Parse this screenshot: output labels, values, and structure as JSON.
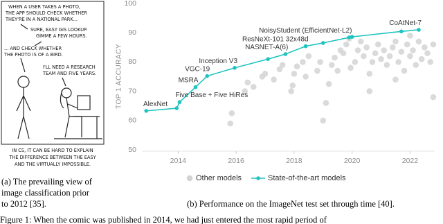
{
  "comic": {
    "lines": [
      "WHEN A USER TAKES A PHOTO,",
      "THE APP SHOULD CHECK WHETHER",
      "THEY'RE IN A NATIONAL PARK...",
      "SURE, EASY GIS LOOKUP.",
      "GIMME A FEW HOURS.",
      "... AND CHECK WHETHER",
      "THE PHOTO IS OF A BIRD.",
      "I'LL NEED A RESEARCH",
      "TEAM AND FIVE YEARS."
    ],
    "caption": [
      "IN CS, IT CAN BE HARD TO EXPLAIN",
      "THE DIFFERENCE BETWEEN THE EASY",
      "AND THE VIRTUALLY IMPOSSIBLE."
    ]
  },
  "caption_a": [
    "(a) The prevailing view of",
    "image classification prior",
    "to 2012 [35]."
  ],
  "caption_b": "(b) Performance on the ImageNet test set through time [40].",
  "figure_caption": "Figure 1: When the comic was published in 2014, we had just entered the most rapid period of",
  "chart_data": {
    "type": "line",
    "y_label": "TOP 1 ACCURACY",
    "xlim": [
      2012.75,
      2022.85
    ],
    "xticks": [
      2014,
      2016,
      2018,
      2020,
      2022
    ],
    "ylim": [
      50,
      100
    ],
    "yticks": [
      50,
      60,
      70,
      80,
      90,
      100
    ],
    "grid": false,
    "legend": "bottom",
    "series": [
      {
        "name": "Other models",
        "color": "#d3d3d3",
        "mode": "markers",
        "x": [
          2015.8,
          2015.85,
          2016.3,
          2016.4,
          2016.6,
          2016.9,
          2017.0,
          2017.3,
          2017.5,
          2017.6,
          2017.9,
          2017.95,
          2018.0,
          2018.1,
          2018.3,
          2018.4,
          2018.5,
          2018.8,
          2018.9,
          2019.0,
          2019.1,
          2019.2,
          2019.3,
          2019.4,
          2019.5,
          2019.6,
          2019.7,
          2019.8,
          2019.9,
          2019.95,
          2020.1,
          2020.2,
          2020.3,
          2020.4,
          2020.5,
          2020.6,
          2020.7,
          2020.8,
          2020.9,
          2021.0,
          2021.1,
          2021.2,
          2021.3,
          2021.4,
          2021.5,
          2021.6,
          2021.7,
          2021.8,
          2021.9,
          2022.0,
          2022.1,
          2022.2,
          2022.3,
          2022.4,
          2022.5,
          2022.6,
          2022.7,
          2022.8,
          2022.0,
          2021.5,
          2020.6,
          2022.8
        ],
        "values": [
          59,
          62.5,
          70,
          73,
          71.5,
          75,
          76,
          74,
          77.5,
          79,
          70,
          72,
          76,
          78.5,
          80,
          75,
          82,
          77,
          80,
          60,
          66,
          72.5,
          79,
          81.5,
          77,
          84,
          83,
          86,
          88,
          78,
          80,
          84,
          87,
          82,
          85,
          76,
          80,
          83,
          86,
          81,
          84,
          79,
          82,
          85,
          87,
          80,
          83.5,
          77,
          86,
          82,
          84,
          79,
          87,
          81,
          85,
          83,
          80,
          86,
          89,
          74,
          70,
          68
        ]
      },
      {
        "name": "State-of-the-art models",
        "color": "#1fc4c0",
        "mode": "lines+markers",
        "x": [
          2012.9,
          2013.95,
          2014.05,
          2014.6,
          2015.0,
          2015.95,
          2017.1,
          2017.7,
          2018.4,
          2019.0,
          2019.9,
          2020.0,
          2021.7,
          2022.3
        ],
        "values": [
          63.3,
          64.2,
          66.3,
          71.4,
          75.2,
          78.0,
          81.0,
          82.7,
          85.4,
          86.5,
          88.4,
          88.6,
          90.45,
          91.0
        ],
        "point_labels": [
          "AlexNet",
          null,
          "Five Base + Five HiRes",
          "MSRA",
          "VGC-19",
          "Inception V3",
          null,
          "NASNET-A(6)",
          "ResNeXt-101 32x48d",
          null,
          "NoisyStudent (EfficientNet-L2)",
          null,
          null,
          "CoAtNet-7"
        ]
      }
    ]
  }
}
